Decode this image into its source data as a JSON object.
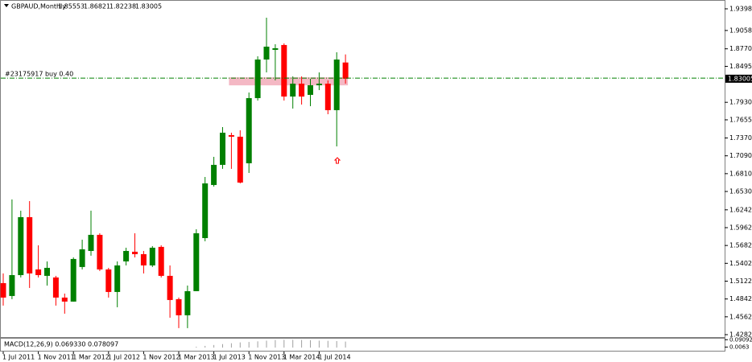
{
  "chart_data": {
    "type": "candlestick",
    "title": "GBPAUD,Monthly",
    "categories": [
      "1 Jul 2011",
      null,
      null,
      null,
      "1 Nov 2011",
      null,
      null,
      null,
      "1 Mar 2012",
      null,
      null,
      null,
      "1 Jul 2012",
      null,
      null,
      null,
      "1 Nov 2012",
      null,
      null,
      null,
      "1 Mar 2013",
      null,
      null,
      null,
      "1 Jul 2013",
      null,
      null,
      null,
      "1 Nov 2013",
      null,
      null,
      null,
      "1 Mar 2014",
      null,
      null,
      null,
      "1 Jul 2014",
      null,
      null,
      null
    ],
    "open": [
      1.5091,
      1.4889,
      1.5217,
      1.6127,
      1.5306,
      1.5205,
      1.518,
      1.4864,
      1.4801,
      1.5344,
      1.5596,
      1.5849,
      1.5306,
      1.4952,
      1.5432,
      1.5584,
      1.5546,
      1.5369,
      1.566,
      1.5205,
      1.4839,
      1.4586,
      1.4965,
      1.5798,
      1.6632,
      1.6948,
      1.7415,
      1.739,
      1.6973,
      1.7996,
      1.8602,
      1.8754,
      1.883,
      1.8021,
      1.8223,
      1.8047,
      1.8198,
      1.8223,
      1.7807,
      1.85553
    ],
    "high": [
      1.5243,
      1.6405,
      1.6228,
      1.6379,
      1.5685,
      1.5432,
      1.5205,
      1.4927,
      1.5495,
      1.5773,
      1.6228,
      1.5874,
      1.5331,
      1.5432,
      1.5647,
      1.5874,
      1.5596,
      1.5672,
      1.5685,
      1.5369,
      1.4864,
      1.5053,
      1.5937,
      1.6758,
      1.7074,
      1.7541,
      1.7453,
      1.7491,
      1.8084,
      1.8653,
      1.9259,
      1.8842,
      1.8855,
      1.8337,
      1.8337,
      1.8299,
      1.84,
      1.8274,
      1.8716,
      1.86821
    ],
    "low": [
      1.4738,
      1.4839,
      1.518,
      1.5015,
      1.518,
      1.5053,
      1.4738,
      1.4611,
      1.4801,
      1.5306,
      1.5521,
      1.5281,
      1.4864,
      1.4712,
      1.5369,
      1.5495,
      1.5243,
      1.5344,
      1.518,
      1.4548,
      1.4384,
      1.4384,
      1.4965,
      1.5748,
      1.6607,
      1.6885,
      1.6885,
      1.6657,
      1.6821,
      1.7958,
      1.84,
      1.8274,
      1.7958,
      1.7832,
      1.7895,
      1.787,
      1.8122,
      1.7743,
      1.7238,
      1.82238
    ],
    "close": [
      1.4864,
      1.5217,
      1.6127,
      1.5243,
      1.5217,
      1.5331,
      1.4864,
      1.4801,
      1.547,
      1.5622,
      1.5849,
      1.5306,
      1.4952,
      1.5369,
      1.5596,
      1.5546,
      1.5369,
      1.5647,
      1.5205,
      1.4826,
      1.4586,
      1.4965,
      1.5874,
      1.6657,
      1.6948,
      1.7453,
      1.739,
      1.667,
      1.7996,
      1.8602,
      1.8804,
      1.8779,
      1.8021,
      1.8223,
      1.8021,
      1.8198,
      1.8223,
      1.7807,
      1.8602,
      1.83005
    ],
    "up_color": "#008000",
    "down_color": "#ff0000",
    "ylim": [
      1.4244,
      1.9524
    ],
    "yticks": [
      {
        "value": 1.9398,
        "label": "1.93980"
      },
      {
        "value": 1.9058,
        "label": "1.90580"
      },
      {
        "value": 1.877,
        "label": "1.87700"
      },
      {
        "value": 1.8495,
        "label": "1.84950"
      },
      {
        "value": 1.793,
        "label": "1.79300"
      },
      {
        "value": 1.7655,
        "label": "1.76550"
      },
      {
        "value": 1.737,
        "label": "1.73700"
      },
      {
        "value": 1.709,
        "label": "1.70900"
      },
      {
        "value": 1.681,
        "label": "1.68100"
      },
      {
        "value": 1.653,
        "label": "1.65300"
      },
      {
        "value": 1.6242,
        "label": "1.62420"
      },
      {
        "value": 1.5962,
        "label": "1.59620"
      },
      {
        "value": 1.5682,
        "label": "1.56820"
      },
      {
        "value": 1.5402,
        "label": "1.54020"
      },
      {
        "value": 1.5122,
        "label": "1.51220"
      },
      {
        "value": 1.4842,
        "label": "1.48420"
      },
      {
        "value": 1.4562,
        "label": "1.45620"
      },
      {
        "value": 1.4282,
        "label": "1.42820"
      }
    ],
    "order": {
      "label": "#23175917 buy 0.40",
      "price": 1.831,
      "color": "#008000"
    },
    "macd": {
      "label": "MACD(12,26,9) 0.069330 0.078097",
      "values": [
        null,
        null,
        null,
        null,
        null,
        null,
        null,
        null,
        null,
        null,
        null,
        null,
        null,
        null,
        null,
        null,
        null,
        null,
        null,
        null,
        null,
        null,
        0.01,
        0.02,
        0.03,
        0.04,
        0.05,
        0.06,
        0.065,
        0.072,
        0.08,
        0.088,
        0.09,
        0.09,
        0.088,
        0.085,
        0.08,
        0.078,
        0.075,
        0.06933
      ],
      "color": "#a0a0a0",
      "ylim": [
        -0.036,
        0.1027
      ],
      "yticks": [
        {
          "value": 0.090925,
          "label": "0.090925"
        },
        {
          "value": 0.0063,
          "label": "0.0063"
        }
      ]
    }
  }
}
